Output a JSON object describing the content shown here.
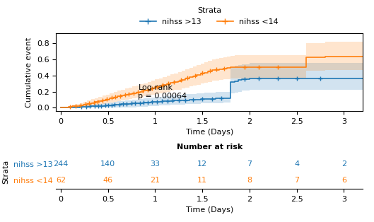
{
  "chart_data": {
    "type": "km",
    "xlabel": "Time (Days)",
    "ylabel": "Cumulative event",
    "xlim": [
      -0.05,
      3.2
    ],
    "ylim": [
      -0.04,
      0.92
    ],
    "xticks": [
      0,
      0.5,
      1,
      1.5,
      2,
      2.5,
      3
    ],
    "yticks": [
      0.0,
      0.2,
      0.4,
      0.6,
      0.8
    ],
    "legend": "upper center",
    "legend_title": "Strata",
    "annotations": [
      {
        "text": "Log-rank\np = 0.00064",
        "x": 0.82,
        "y": 0.29
      }
    ],
    "series": [
      {
        "name": "nihss >13",
        "x": [
          0.0,
          0.04,
          0.08,
          0.12,
          0.16,
          0.2,
          0.24,
          0.28,
          0.32,
          0.36,
          0.4,
          0.44,
          0.48,
          0.52,
          0.56,
          0.6,
          0.64,
          0.68,
          0.72,
          0.76,
          0.8,
          0.84,
          0.88,
          0.92,
          0.96,
          1.0,
          1.04,
          1.08,
          1.12,
          1.16,
          1.2,
          1.24,
          1.28,
          1.32,
          1.36,
          1.4,
          1.44,
          1.48,
          1.52,
          1.56,
          1.6,
          1.64,
          1.68,
          1.72,
          1.76,
          1.8,
          1.84,
          1.88,
          1.92,
          2.0,
          2.2,
          2.4,
          2.6,
          2.8,
          3.0,
          3.2
        ],
        "values": [
          0.0,
          0.002,
          0.004,
          0.006,
          0.008,
          0.01,
          0.012,
          0.015,
          0.018,
          0.02,
          0.022,
          0.025,
          0.028,
          0.032,
          0.036,
          0.04,
          0.043,
          0.046,
          0.05,
          0.053,
          0.056,
          0.06,
          0.063,
          0.066,
          0.07,
          0.074,
          0.077,
          0.08,
          0.083,
          0.086,
          0.088,
          0.09,
          0.092,
          0.095,
          0.098,
          0.1,
          0.103,
          0.106,
          0.108,
          0.11,
          0.112,
          0.113,
          0.114,
          0.115,
          0.116,
          0.32,
          0.33,
          0.34,
          0.35,
          0.36,
          0.36,
          0.36,
          0.36,
          0.36,
          0.36,
          0.36
        ],
        "ci_lower": [
          0.0,
          0.0,
          0.0,
          0.0,
          0.0,
          0.0,
          0.0,
          0.0,
          0.0,
          0.0,
          0.0,
          0.0,
          0.0,
          0.0,
          0.0,
          0.0,
          0.0,
          0.002,
          0.005,
          0.008,
          0.01,
          0.013,
          0.016,
          0.019,
          0.022,
          0.025,
          0.028,
          0.03,
          0.033,
          0.036,
          0.038,
          0.04,
          0.042,
          0.044,
          0.046,
          0.048,
          0.05,
          0.052,
          0.054,
          0.056,
          0.058,
          0.059,
          0.06,
          0.061,
          0.062,
          0.18,
          0.19,
          0.2,
          0.21,
          0.22,
          0.22,
          0.22,
          0.22,
          0.22,
          0.22,
          0.22
        ],
        "ci_upper": [
          0.0,
          0.006,
          0.012,
          0.016,
          0.02,
          0.025,
          0.03,
          0.036,
          0.041,
          0.046,
          0.05,
          0.055,
          0.06,
          0.066,
          0.072,
          0.078,
          0.083,
          0.088,
          0.094,
          0.099,
          0.104,
          0.11,
          0.115,
          0.12,
          0.126,
          0.132,
          0.137,
          0.142,
          0.147,
          0.153,
          0.156,
          0.16,
          0.163,
          0.167,
          0.171,
          0.174,
          0.178,
          0.181,
          0.184,
          0.187,
          0.19,
          0.192,
          0.194,
          0.196,
          0.198,
          0.5,
          0.52,
          0.53,
          0.54,
          0.55,
          0.55,
          0.55,
          0.55,
          0.55,
          0.55,
          0.55
        ],
        "censored_x": [
          0.22,
          0.27,
          0.31,
          0.36,
          0.4,
          0.43,
          0.47,
          0.5,
          0.54,
          0.57,
          0.62,
          0.66,
          0.7,
          0.75,
          0.79,
          0.84,
          0.88,
          0.92,
          0.97,
          1.02,
          1.07,
          1.13,
          1.18,
          1.25,
          1.32,
          1.4,
          1.5,
          1.6,
          1.7,
          1.95,
          2.1,
          2.3,
          2.5,
          2.75
        ],
        "censored_y": [
          0.011,
          0.01425,
          0.01725,
          0.02,
          0.022,
          0.02425,
          0.02725,
          0.03,
          0.034,
          0.037,
          0.0415,
          0.0445,
          0.048,
          0.05225,
          0.05525,
          0.06,
          0.063,
          0.066,
          0.071,
          0.0755,
          0.07925,
          0.08375,
          0.087,
          0.0905,
          0.095,
          0.1,
          0.107,
          0.112,
          0.1145,
          0.35375,
          0.36,
          0.36,
          0.36,
          0.36
        ],
        "at_risk": [
          244,
          140,
          33,
          12,
          7,
          4,
          2
        ]
      },
      {
        "name": "nihss <14",
        "x": [
          0.0,
          0.04,
          0.08,
          0.12,
          0.16,
          0.2,
          0.24,
          0.28,
          0.32,
          0.36,
          0.4,
          0.44,
          0.48,
          0.52,
          0.56,
          0.6,
          0.64,
          0.68,
          0.72,
          0.76,
          0.8,
          0.84,
          0.88,
          0.92,
          0.96,
          1.0,
          1.04,
          1.08,
          1.12,
          1.16,
          1.2,
          1.24,
          1.28,
          1.32,
          1.36,
          1.4,
          1.44,
          1.48,
          1.52,
          1.56,
          1.6,
          1.64,
          1.68,
          1.72,
          1.76,
          1.8,
          1.84,
          1.88,
          1.92,
          2.0,
          2.2,
          2.4,
          2.6,
          2.8,
          3.0,
          3.2
        ],
        "values": [
          0.0,
          0.005,
          0.01,
          0.018,
          0.025,
          0.032,
          0.04,
          0.05,
          0.06,
          0.07,
          0.08,
          0.092,
          0.104,
          0.116,
          0.128,
          0.14,
          0.15,
          0.16,
          0.17,
          0.18,
          0.19,
          0.2,
          0.213,
          0.226,
          0.24,
          0.254,
          0.268,
          0.28,
          0.293,
          0.306,
          0.318,
          0.33,
          0.345,
          0.36,
          0.375,
          0.39,
          0.405,
          0.42,
          0.435,
          0.45,
          0.463,
          0.47,
          0.478,
          0.485,
          0.49,
          0.5,
          0.505,
          0.505,
          0.505,
          0.505,
          0.505,
          0.505,
          0.62,
          0.63,
          0.63,
          0.63
        ],
        "ci_lower": [
          0.0,
          0.0,
          0.0,
          0.004,
          0.008,
          0.012,
          0.016,
          0.022,
          0.028,
          0.035,
          0.042,
          0.05,
          0.058,
          0.066,
          0.074,
          0.082,
          0.09,
          0.098,
          0.106,
          0.114,
          0.122,
          0.13,
          0.14,
          0.15,
          0.16,
          0.17,
          0.18,
          0.19,
          0.2,
          0.21,
          0.218,
          0.226,
          0.238,
          0.25,
          0.262,
          0.274,
          0.286,
          0.298,
          0.31,
          0.322,
          0.332,
          0.338,
          0.344,
          0.35,
          0.356,
          0.362,
          0.366,
          0.366,
          0.366,
          0.366,
          0.366,
          0.366,
          0.46,
          0.47,
          0.47,
          0.47
        ],
        "ci_upper": [
          0.0,
          0.014,
          0.025,
          0.036,
          0.048,
          0.06,
          0.075,
          0.09,
          0.105,
          0.12,
          0.135,
          0.15,
          0.165,
          0.18,
          0.196,
          0.212,
          0.224,
          0.236,
          0.248,
          0.262,
          0.276,
          0.29,
          0.304,
          0.318,
          0.334,
          0.35,
          0.366,
          0.38,
          0.395,
          0.41,
          0.425,
          0.44,
          0.458,
          0.476,
          0.494,
          0.512,
          0.53,
          0.548,
          0.566,
          0.584,
          0.6,
          0.608,
          0.618,
          0.626,
          0.634,
          0.645,
          0.652,
          0.652,
          0.652,
          0.652,
          0.652,
          0.652,
          0.8,
          0.82,
          0.82,
          0.82
        ],
        "censored_x": [
          0.1,
          0.16,
          0.21,
          0.26,
          0.3,
          0.35,
          0.39,
          0.44,
          0.49,
          0.54,
          0.58,
          0.63,
          0.68,
          0.72,
          0.77,
          0.82,
          0.87,
          0.92,
          0.97,
          1.02,
          1.08,
          1.14,
          1.2,
          1.27,
          1.34,
          1.42,
          1.5,
          1.58,
          1.65,
          1.73,
          1.95,
          2.1,
          2.3
        ],
        "censored_y": [
          0.014,
          0.025,
          0.034,
          0.045,
          0.055,
          0.0675,
          0.0775,
          0.092,
          0.107,
          0.122,
          0.134,
          0.1475,
          0.16,
          0.17,
          0.1825,
          0.195,
          0.20975,
          0.226,
          0.2435,
          0.261,
          0.28,
          0.2995,
          0.318,
          0.34125,
          0.3675,
          0.3975,
          0.4275,
          0.4565,
          0.472,
          0.48625,
          0.505,
          0.505,
          0.505
        ],
        "at_risk": [
          62,
          46,
          21,
          11,
          8,
          7,
          6
        ]
      }
    ],
    "risk_table": {
      "title": "Number at risk",
      "ylabel": "Strata",
      "xlabel": "Time (Days)",
      "times": [
        0,
        0.5,
        1,
        1.5,
        2,
        2.5,
        3
      ]
    }
  }
}
